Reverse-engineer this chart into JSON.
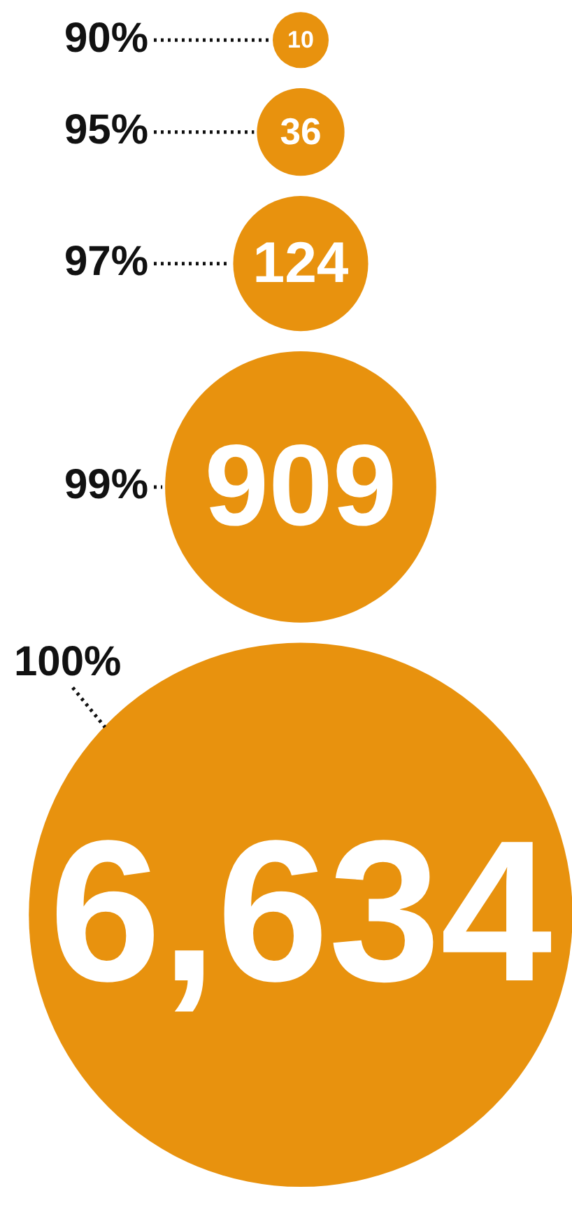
{
  "chart_data": {
    "type": "other",
    "categories": [
      "90%",
      "95%",
      "97%",
      "99%",
      "100%"
    ],
    "values": [
      10,
      36,
      124,
      909,
      6634
    ],
    "value_labels": [
      "10",
      "36",
      "124",
      "909",
      "6,634"
    ],
    "color": "#e8920e",
    "legend": false
  }
}
